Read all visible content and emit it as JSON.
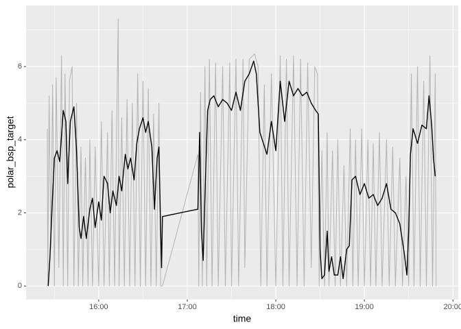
{
  "chart_data": {
    "type": "line",
    "x_label": "time",
    "y_label": "polar_bsp_target",
    "xlim": [
      15.18,
      20.06
    ],
    "ylim": [
      -0.37,
      7.67
    ],
    "xticks": [
      {
        "value": 16,
        "label": "16:00"
      },
      {
        "value": 17,
        "label": "17:00"
      },
      {
        "value": 18,
        "label": "18:00"
      },
      {
        "value": 19,
        "label": "19:00"
      },
      {
        "value": 20,
        "label": "20:00"
      }
    ],
    "yticks": [
      0,
      2,
      4,
      6
    ],
    "grid": true,
    "series": [
      {
        "color": "#b3b3b3",
        "x": [
          15.42,
          15.425,
          15.44,
          15.46,
          15.48,
          15.5,
          15.52,
          15.55,
          15.58,
          15.6,
          15.62,
          15.65,
          15.67,
          15.7,
          15.72,
          15.75,
          15.77,
          15.8,
          15.82,
          15.85,
          15.88,
          15.9,
          15.93,
          15.96,
          16.0,
          16.03,
          16.06,
          16.1,
          16.12,
          16.15,
          16.18,
          16.2,
          16.22,
          16.23,
          16.26,
          16.29,
          16.32,
          16.35,
          16.38,
          16.41,
          16.44,
          16.47,
          16.5,
          16.53,
          16.56,
          16.59,
          16.62,
          16.65,
          16.68,
          16.7,
          16.72,
          17.12,
          17.13,
          17.15,
          17.17,
          17.2,
          17.22,
          17.25,
          17.28,
          17.32,
          17.35,
          17.4,
          17.43,
          17.48,
          17.5,
          17.55,
          17.58,
          17.63,
          17.65,
          17.7,
          17.76,
          17.8,
          17.83,
          17.87,
          17.9,
          17.95,
          18.0,
          18.05,
          18.08,
          18.12,
          18.15,
          18.2,
          18.24,
          18.28,
          18.32,
          18.36,
          18.4,
          18.44,
          18.47,
          18.49,
          18.52,
          18.55,
          18.58,
          18.6,
          18.64,
          18.67,
          18.7,
          18.73,
          18.77,
          18.8,
          18.84,
          18.87,
          18.9,
          18.93,
          18.97,
          19.0,
          19.04,
          19.07,
          19.1,
          19.13,
          19.17,
          19.2,
          19.25,
          19.28,
          19.32,
          19.35,
          19.4,
          19.43,
          19.47,
          19.5,
          19.53,
          19.56,
          19.6,
          19.63,
          19.67,
          19.7,
          19.74,
          19.77,
          19.8,
          19.81
        ],
        "values": [
          4.3,
          0,
          5.2,
          1.0,
          5.5,
          0,
          5.7,
          0.5,
          6.3,
          0,
          5.8,
          0,
          5.6,
          6.0,
          0,
          5.0,
          0,
          3.8,
          0,
          3.5,
          0,
          4.0,
          0,
          3.8,
          0,
          4.5,
          0,
          4.2,
          0,
          4.8,
          0,
          3.9,
          7.3,
          0,
          4.6,
          0,
          5.1,
          0,
          5.0,
          0,
          5.8,
          0,
          5.6,
          0,
          5.4,
          0,
          4.7,
          0,
          5.0,
          0,
          0,
          3.6,
          0,
          5.3,
          0,
          6.0,
          0,
          6.2,
          0,
          6.1,
          0,
          6.0,
          0,
          6.1,
          0,
          6.2,
          0,
          6.2,
          0.5,
          6.2,
          6.35,
          6.0,
          0,
          5.5,
          0,
          5.8,
          0,
          6.3,
          0,
          6.2,
          0,
          6.3,
          0,
          6.2,
          0,
          6.1,
          0.5,
          6.0,
          5.8,
          0,
          3.7,
          0,
          4.2,
          0,
          3.7,
          0,
          4.0,
          0,
          3.3,
          0,
          4.3,
          0,
          4.0,
          0,
          4.3,
          0,
          4.0,
          0,
          3.9,
          0,
          4.2,
          0,
          4.0,
          0,
          3.8,
          0,
          3.5,
          0,
          3.0,
          0,
          5.8,
          0,
          6.0,
          0,
          5.6,
          0,
          6.3,
          0,
          5.8,
          0
        ]
      },
      {
        "color": "#000000",
        "x": [
          15.43,
          15.45,
          15.48,
          15.5,
          15.53,
          15.56,
          15.6,
          15.63,
          15.65,
          15.68,
          15.72,
          15.75,
          15.78,
          15.8,
          15.83,
          15.86,
          15.9,
          15.93,
          15.96,
          16.0,
          16.03,
          16.06,
          16.1,
          16.13,
          16.16,
          16.2,
          16.23,
          16.26,
          16.3,
          16.33,
          16.36,
          16.4,
          16.43,
          16.46,
          16.5,
          16.53,
          16.56,
          16.6,
          16.63,
          16.66,
          16.68,
          16.7,
          16.71,
          16.72,
          17.12,
          17.14,
          17.16,
          17.18,
          17.2,
          17.23,
          17.26,
          17.3,
          17.35,
          17.4,
          17.45,
          17.5,
          17.55,
          17.6,
          17.65,
          17.7,
          17.75,
          17.78,
          17.82,
          17.86,
          17.9,
          17.95,
          18.0,
          18.05,
          18.1,
          18.15,
          18.2,
          18.25,
          18.3,
          18.35,
          18.4,
          18.45,
          18.48,
          18.5,
          18.52,
          18.55,
          18.58,
          18.6,
          18.63,
          18.66,
          18.7,
          18.73,
          18.76,
          18.8,
          18.83,
          18.86,
          18.9,
          18.95,
          19.0,
          19.05,
          19.1,
          19.15,
          19.2,
          19.25,
          19.3,
          19.35,
          19.4,
          19.45,
          19.48,
          19.5,
          19.52,
          19.55,
          19.6,
          19.65,
          19.7,
          19.73,
          19.76,
          19.78,
          19.8
        ],
        "values": [
          0,
          0.8,
          2.5,
          3.5,
          3.7,
          3.4,
          4.8,
          4.5,
          2.8,
          4.5,
          4.9,
          3.7,
          1.6,
          1.3,
          1.9,
          1.3,
          2.1,
          2.4,
          1.6,
          2.3,
          1.8,
          3.0,
          2.8,
          2.0,
          2.6,
          2.2,
          3.0,
          2.6,
          3.6,
          3.2,
          3.5,
          2.9,
          3.9,
          4.3,
          4.6,
          4.2,
          4.5,
          3.8,
          2.1,
          3.5,
          3.8,
          1.5,
          0.5,
          1.9,
          2.1,
          4.2,
          1.5,
          0.7,
          2.5,
          4.8,
          5.1,
          5.2,
          4.9,
          5.1,
          5.0,
          4.8,
          5.3,
          4.8,
          5.6,
          5.8,
          6.15,
          5.8,
          4.2,
          3.9,
          3.6,
          4.5,
          3.7,
          5.6,
          4.5,
          5.6,
          5.2,
          5.4,
          5.2,
          5.3,
          5.0,
          4.8,
          4.7,
          1.0,
          0.2,
          0.3,
          1.5,
          0.4,
          0.8,
          0.3,
          0.3,
          0.8,
          0.2,
          1.0,
          1.1,
          2.9,
          3.0,
          2.5,
          2.8,
          2.4,
          2.5,
          2.2,
          2.4,
          2.8,
          2.1,
          2.0,
          1.7,
          0.9,
          0.3,
          1.5,
          3.6,
          4.3,
          3.9,
          4.4,
          4.3,
          5.2,
          4.4,
          3.5,
          3.0
        ]
      }
    ]
  }
}
